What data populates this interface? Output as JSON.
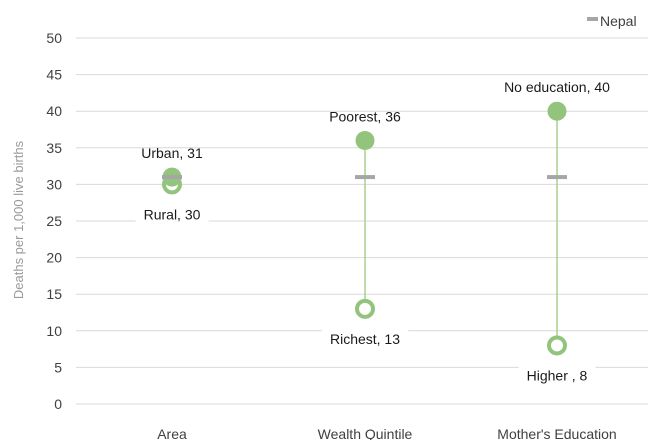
{
  "chart_data": {
    "type": "scatter",
    "ylabel": "Deaths per 1,000 live births",
    "ylim": [
      0,
      50
    ],
    "yticks": [
      0,
      5,
      10,
      15,
      20,
      25,
      30,
      35,
      40,
      45,
      50
    ],
    "grid": true,
    "legend_position": "top-right",
    "legend": [
      {
        "name": "Nepal",
        "color": "#a6a6a6",
        "marker": "dash"
      }
    ],
    "categories": [
      "Area",
      "Wealth Quintile",
      "Mother's Education"
    ],
    "series": [
      {
        "category": "Area",
        "high": {
          "label": "Urban, 31",
          "value": 31
        },
        "low": {
          "label": "Rural, 30",
          "value": 30
        },
        "national": 31
      },
      {
        "category": "Wealth Quintile",
        "high": {
          "label": "Poorest, 36",
          "value": 36
        },
        "low": {
          "label": "Richest, 13",
          "value": 13
        },
        "national": 31
      },
      {
        "category": "Mother's Education",
        "high": {
          "label": "No education, 40",
          "value": 40
        },
        "low": {
          "label": "Higher , 8",
          "value": 8
        },
        "national": 31
      }
    ],
    "colors": {
      "point": "#93c47d",
      "line": "#a9d18e",
      "national": "#a6a6a6",
      "grid": "#d9d9d9"
    }
  }
}
